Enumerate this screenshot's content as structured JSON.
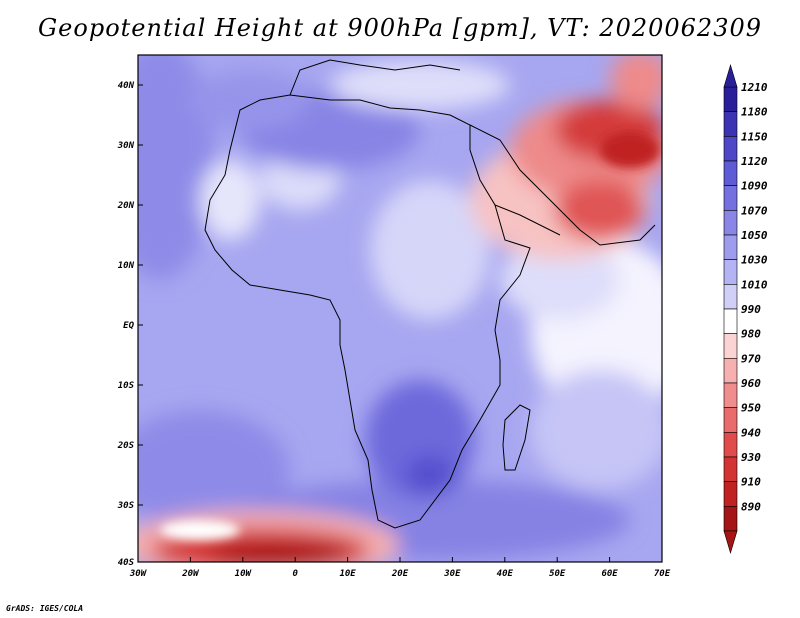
{
  "title": "Geopotential Height at 900hPa [gpm], VT: 2020062309",
  "footer": "GrADS: IGES/COLA",
  "map": {
    "lon_ticks": [
      "30W",
      "20W",
      "10W",
      "0",
      "10E",
      "20E",
      "30E",
      "40E",
      "50E",
      "60E",
      "70E"
    ],
    "lat_ticks": [
      "40N",
      "30N",
      "20N",
      "10N",
      "EQ",
      "10S",
      "20S",
      "30S",
      "40S"
    ]
  },
  "colorbar": {
    "levels": [
      "1210",
      "1180",
      "1150",
      "1120",
      "1090",
      "1070",
      "1050",
      "1030",
      "1010",
      "990",
      "980",
      "970",
      "960",
      "950",
      "940",
      "930",
      "910",
      "890"
    ],
    "colors": [
      "#2a1f9a",
      "#3b33b3",
      "#4e48c8",
      "#5f5bd6",
      "#7470e0",
      "#8986e6",
      "#9e9ced",
      "#b4b3f3",
      "#cfcff8",
      "#ffffff",
      "#fbd3d3",
      "#f6b0b0",
      "#f08e8e",
      "#ea6b6b",
      "#e04c4c",
      "#d43333",
      "#c02222",
      "#a51515"
    ]
  }
}
